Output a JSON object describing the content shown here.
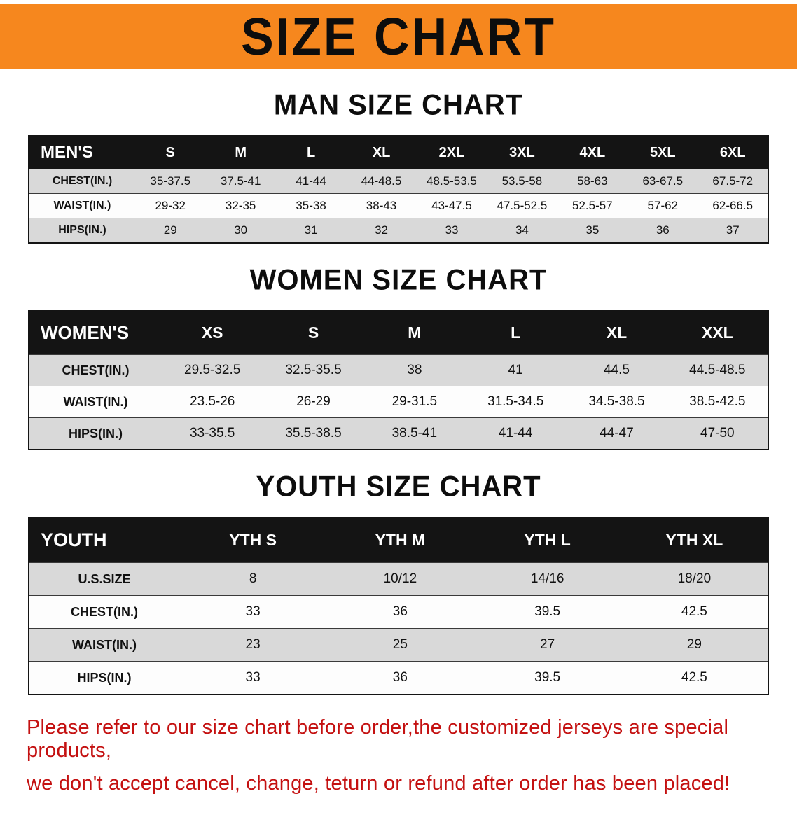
{
  "banner": {
    "title": "SIZE CHART"
  },
  "colors": {
    "banner_bg": "#F6871E",
    "table_header_bg": "#141414",
    "row_shade_bg": "#d9d9d9",
    "notice_text": "#c41111"
  },
  "men": {
    "heading": "MAN SIZE CHART",
    "header": [
      "MEN'S",
      "S",
      "M",
      "L",
      "XL",
      "2XL",
      "3XL",
      "4XL",
      "5XL",
      "6XL"
    ],
    "rows": [
      {
        "label": "CHEST(IN.)",
        "values": [
          "35-37.5",
          "37.5-41",
          "41-44",
          "44-48.5",
          "48.5-53.5",
          "53.5-58",
          "58-63",
          "63-67.5",
          "67.5-72"
        ]
      },
      {
        "label": "WAIST(IN.)",
        "values": [
          "29-32",
          "32-35",
          "35-38",
          "38-43",
          "43-47.5",
          "47.5-52.5",
          "52.5-57",
          "57-62",
          "62-66.5"
        ]
      },
      {
        "label": "HIPS(IN.)",
        "values": [
          "29",
          "30",
          "31",
          "32",
          "33",
          "34",
          "35",
          "36",
          "37"
        ]
      }
    ]
  },
  "women": {
    "heading": "WOMEN SIZE CHART",
    "header": [
      "WOMEN'S",
      "XS",
      "S",
      "M",
      "L",
      "XL",
      "XXL"
    ],
    "rows": [
      {
        "label": "CHEST(IN.)",
        "values": [
          "29.5-32.5",
          "32.5-35.5",
          "38",
          "41",
          "44.5",
          "44.5-48.5"
        ]
      },
      {
        "label": "WAIST(IN.)",
        "values": [
          "23.5-26",
          "26-29",
          "29-31.5",
          "31.5-34.5",
          "34.5-38.5",
          "38.5-42.5"
        ]
      },
      {
        "label": "HIPS(IN.)",
        "values": [
          "33-35.5",
          "35.5-38.5",
          "38.5-41",
          "41-44",
          "44-47",
          "47-50"
        ]
      }
    ]
  },
  "youth": {
    "heading": "YOUTH SIZE CHART",
    "header": [
      "YOUTH",
      "YTH S",
      "YTH M",
      "YTH L",
      "YTH XL"
    ],
    "rows": [
      {
        "label": "U.S.SIZE",
        "values": [
          "8",
          "10/12",
          "14/16",
          "18/20"
        ]
      },
      {
        "label": "CHEST(IN.)",
        "values": [
          "33",
          "36",
          "39.5",
          "42.5"
        ]
      },
      {
        "label": "WAIST(IN.)",
        "values": [
          "23",
          "25",
          "27",
          "29"
        ]
      },
      {
        "label": "HIPS(IN.)",
        "values": [
          "33",
          "36",
          "39.5",
          "42.5"
        ]
      }
    ]
  },
  "footer": {
    "line1": "Please refer to our size chart before order,the customized jerseys are special products,",
    "line2": "we don't accept cancel, change, teturn or refund after order has been placed!"
  }
}
